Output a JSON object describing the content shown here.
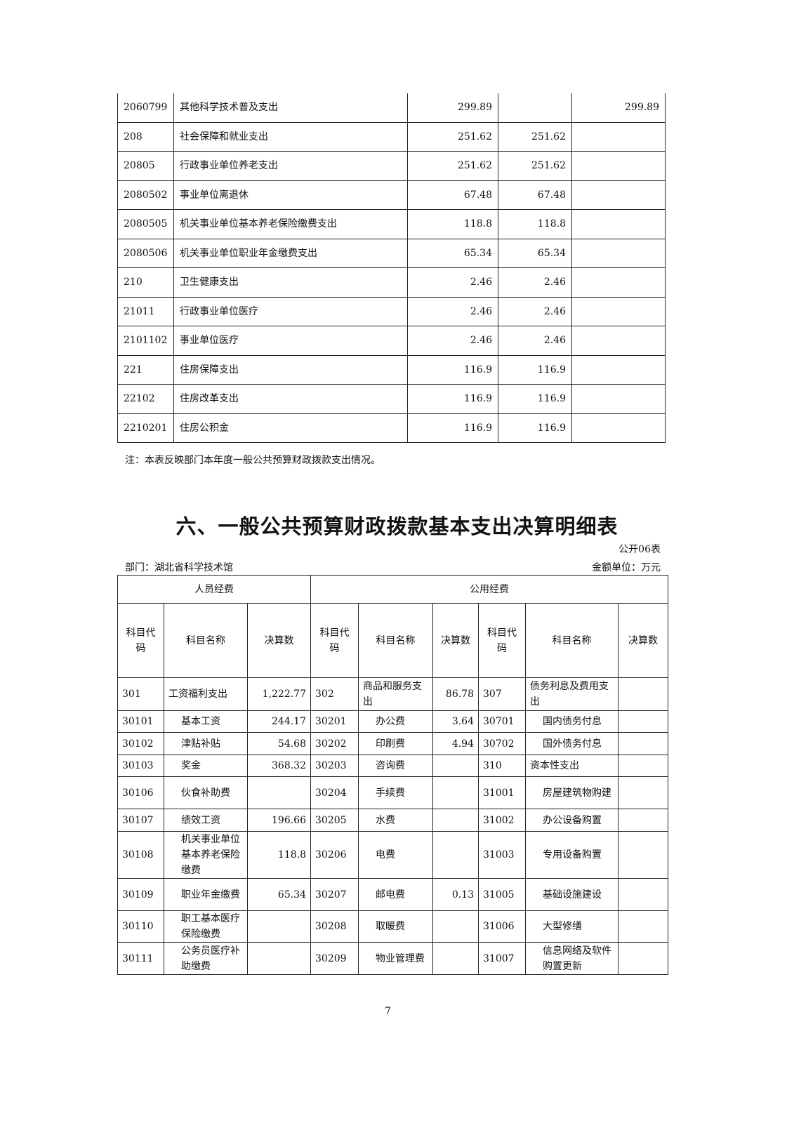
{
  "table1": {
    "rows": [
      [
        "2060799",
        "其他科学技术普及支出",
        "299.89",
        "",
        "299.89"
      ],
      [
        "208",
        "社会保障和就业支出",
        "251.62",
        "251.62",
        ""
      ],
      [
        "20805",
        "行政事业单位养老支出",
        "251.62",
        "251.62",
        ""
      ],
      [
        "2080502",
        "事业单位离退休",
        "67.48",
        "67.48",
        ""
      ],
      [
        "2080505",
        "机关事业单位基本养老保险缴费支出",
        "118.8",
        "118.8",
        ""
      ],
      [
        "2080506",
        "机关事业单位职业年金缴费支出",
        "65.34",
        "65.34",
        ""
      ],
      [
        "210",
        "卫生健康支出",
        "2.46",
        "2.46",
        ""
      ],
      [
        "21011",
        "行政事业单位医疗",
        "2.46",
        "2.46",
        ""
      ],
      [
        "2101102",
        "事业单位医疗",
        "2.46",
        "2.46",
        ""
      ],
      [
        "221",
        "住房保障支出",
        "116.9",
        "116.9",
        ""
      ],
      [
        "22102",
        "住房改革支出",
        "116.9",
        "116.9",
        ""
      ],
      [
        "2210201",
        "住房公积金",
        "116.9",
        "116.9",
        ""
      ]
    ]
  },
  "note": "注：本表反映部门本年度一般公共预算财政拨款支出情况。",
  "section_title": "六、一般公共预算财政拨款基本支出决算明细表",
  "table_id": "公开06表",
  "department": "部门：湖北省科学技术馆",
  "unit": "金额单位：万元",
  "table2": {
    "group_headers": [
      "人员经费",
      "公用经费"
    ],
    "col_headers": [
      "科目代码",
      "科目名称",
      "决算数",
      "科目代码",
      "科目名称",
      "决算数",
      "科目代码",
      "科目名称",
      "决算数"
    ],
    "rows": [
      [
        "301",
        "工资福利支出",
        "1,222.77",
        "302",
        "商品和服务支出",
        "86.78",
        "307",
        "债务利息及费用支出",
        ""
      ],
      [
        "30101",
        "基本工资",
        "244.17",
        "30201",
        "办公费",
        "3.64",
        "30701",
        "国内债务付息",
        ""
      ],
      [
        "30102",
        "津贴补贴",
        "54.68",
        "30202",
        "印刷费",
        "4.94",
        "30702",
        "国外债务付息",
        ""
      ],
      [
        "30103",
        "奖金",
        "368.32",
        "30203",
        "咨询费",
        "",
        "310",
        "资本性支出",
        ""
      ],
      [
        "30106",
        "伙食补助费",
        "",
        "30204",
        "手续费",
        "",
        "31001",
        "房屋建筑物购建",
        ""
      ],
      [
        "30107",
        "绩效工资",
        "196.66",
        "30205",
        "水费",
        "",
        "31002",
        "办公设备购置",
        ""
      ],
      [
        "30108",
        "机关事业单位基本养老保险缴费",
        "118.8",
        "30206",
        "电费",
        "",
        "31003",
        "专用设备购置",
        ""
      ],
      [
        "30109",
        "职业年金缴费",
        "65.34",
        "30207",
        "邮电费",
        "0.13",
        "31005",
        "基础设施建设",
        ""
      ],
      [
        "30110",
        "职工基本医疗保险缴费",
        "",
        "30208",
        "取暖费",
        "",
        "31006",
        "大型修缮",
        ""
      ],
      [
        "30111",
        "公务员医疗补助缴费",
        "",
        "30209",
        "物业管理费",
        "",
        "31007",
        "信息网络及软件购置更新",
        ""
      ]
    ]
  },
  "page_number": "7"
}
